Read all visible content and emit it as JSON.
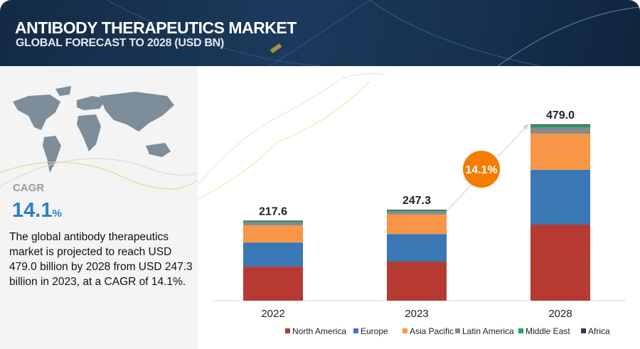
{
  "header": {
    "title": "ANTIBODY THERAPEUTICS MARKET",
    "subtitle": "GLOBAL FORECAST TO 2028 (USD BN)"
  },
  "summary": {
    "cagr_label": "CAGR",
    "cagr_value": "14.1",
    "cagr_unit": "%",
    "description": "The global antibody therapeutics market is projected to reach USD 479.0 billion by 2028 from USD 247.3 billion in 2023, at a CAGR of 14.1%."
  },
  "chart_data": {
    "type": "bar",
    "stacked": true,
    "title": "ANTIBODY THERAPEUTICS MARKET",
    "subtitle": "GLOBAL FORECAST TO 2028 (USD BN)",
    "categories": [
      "2022",
      "2023",
      "2028"
    ],
    "totals": [
      "217.6",
      "247.3",
      "479.0"
    ],
    "series": [
      {
        "name": "North America",
        "color": "#b73a32",
        "values": [
          92.5,
          106.2,
          206.7
        ]
      },
      {
        "name": "Europe",
        "color": "#3a78b6",
        "values": [
          65.6,
          74.8,
          148.8
        ]
      },
      {
        "name": "Asia Pacific",
        "color": "#f79646",
        "values": [
          46.4,
          53.3,
          97.9
        ]
      },
      {
        "name": "Latin America",
        "color": "#8a8a8a",
        "values": [
          8.0,
          8.4,
          16.8
        ]
      },
      {
        "name": "Middle East",
        "color": "#1aa65a",
        "values": [
          3.5,
          3.0,
          6.4
        ]
      },
      {
        "name": "Africa",
        "color": "#4b2a55",
        "values": [
          1.6,
          1.6,
          2.4
        ]
      }
    ],
    "annotation": {
      "text": "14.1%",
      "color": "#f57c00"
    },
    "legend_position": "bottom",
    "grid": false,
    "ylim": [
      0,
      479
    ]
  }
}
